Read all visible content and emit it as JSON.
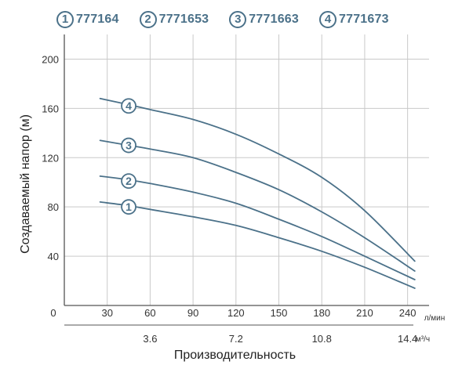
{
  "legend": [
    {
      "num": "1",
      "model": "777164"
    },
    {
      "num": "2",
      "model": "7771653"
    },
    {
      "num": "3",
      "model": "7771663"
    },
    {
      "num": "4",
      "model": "7771673"
    }
  ],
  "colors": {
    "curve": "#4b7189",
    "grid": "#c9c9c9",
    "axis": "#555555",
    "text": "#333333"
  },
  "chart_data": {
    "type": "line",
    "ylabel": "Создаваемый напор (м)",
    "xlabel": "Производительность",
    "origin_label": "0",
    "x_unit_primary": "л/мин",
    "x_unit_secondary": "м³/ч",
    "xlim": [
      0,
      255
    ],
    "ylim": [
      0,
      220
    ],
    "x_ticks": [
      {
        "value": 30,
        "label": "30"
      },
      {
        "value": 60,
        "label": "60"
      },
      {
        "value": 90,
        "label": "90"
      },
      {
        "value": 120,
        "label": "120"
      },
      {
        "value": 150,
        "label": "150"
      },
      {
        "value": 180,
        "label": "180"
      },
      {
        "value": 210,
        "label": "210"
      },
      {
        "value": 240,
        "label": "240"
      }
    ],
    "x_ticks_secondary": [
      {
        "value": 60,
        "label": "3.6"
      },
      {
        "value": 120,
        "label": "7.2"
      },
      {
        "value": 180,
        "label": "10.8"
      },
      {
        "value": 240,
        "label": "14.4"
      }
    ],
    "y_ticks": [
      {
        "value": 40,
        "label": "40"
      },
      {
        "value": 80,
        "label": "80"
      },
      {
        "value": 120,
        "label": "120"
      },
      {
        "value": 160,
        "label": "160"
      },
      {
        "value": 200,
        "label": "200"
      }
    ],
    "series": [
      {
        "name": "1",
        "label_at": [
          45,
          80
        ],
        "x": [
          25,
          45,
          60,
          90,
          120,
          150,
          180,
          210,
          245
        ],
        "y": [
          84,
          81,
          78,
          72,
          65,
          55,
          44,
          31,
          14
        ]
      },
      {
        "name": "2",
        "label_at": [
          45,
          101
        ],
        "x": [
          25,
          45,
          60,
          90,
          120,
          150,
          180,
          210,
          245
        ],
        "y": [
          105,
          102,
          99,
          92,
          83,
          70,
          56,
          40,
          21
        ]
      },
      {
        "name": "3",
        "label_at": [
          45,
          130
        ],
        "x": [
          25,
          45,
          60,
          90,
          120,
          150,
          180,
          210,
          245
        ],
        "y": [
          134,
          130,
          127,
          120,
          108,
          94,
          76,
          55,
          28
        ]
      },
      {
        "name": "4",
        "label_at": [
          45,
          162
        ],
        "x": [
          25,
          45,
          60,
          90,
          120,
          150,
          180,
          210,
          245
        ],
        "y": [
          168,
          163,
          159,
          151,
          139,
          123,
          104,
          77,
          36
        ]
      }
    ]
  }
}
